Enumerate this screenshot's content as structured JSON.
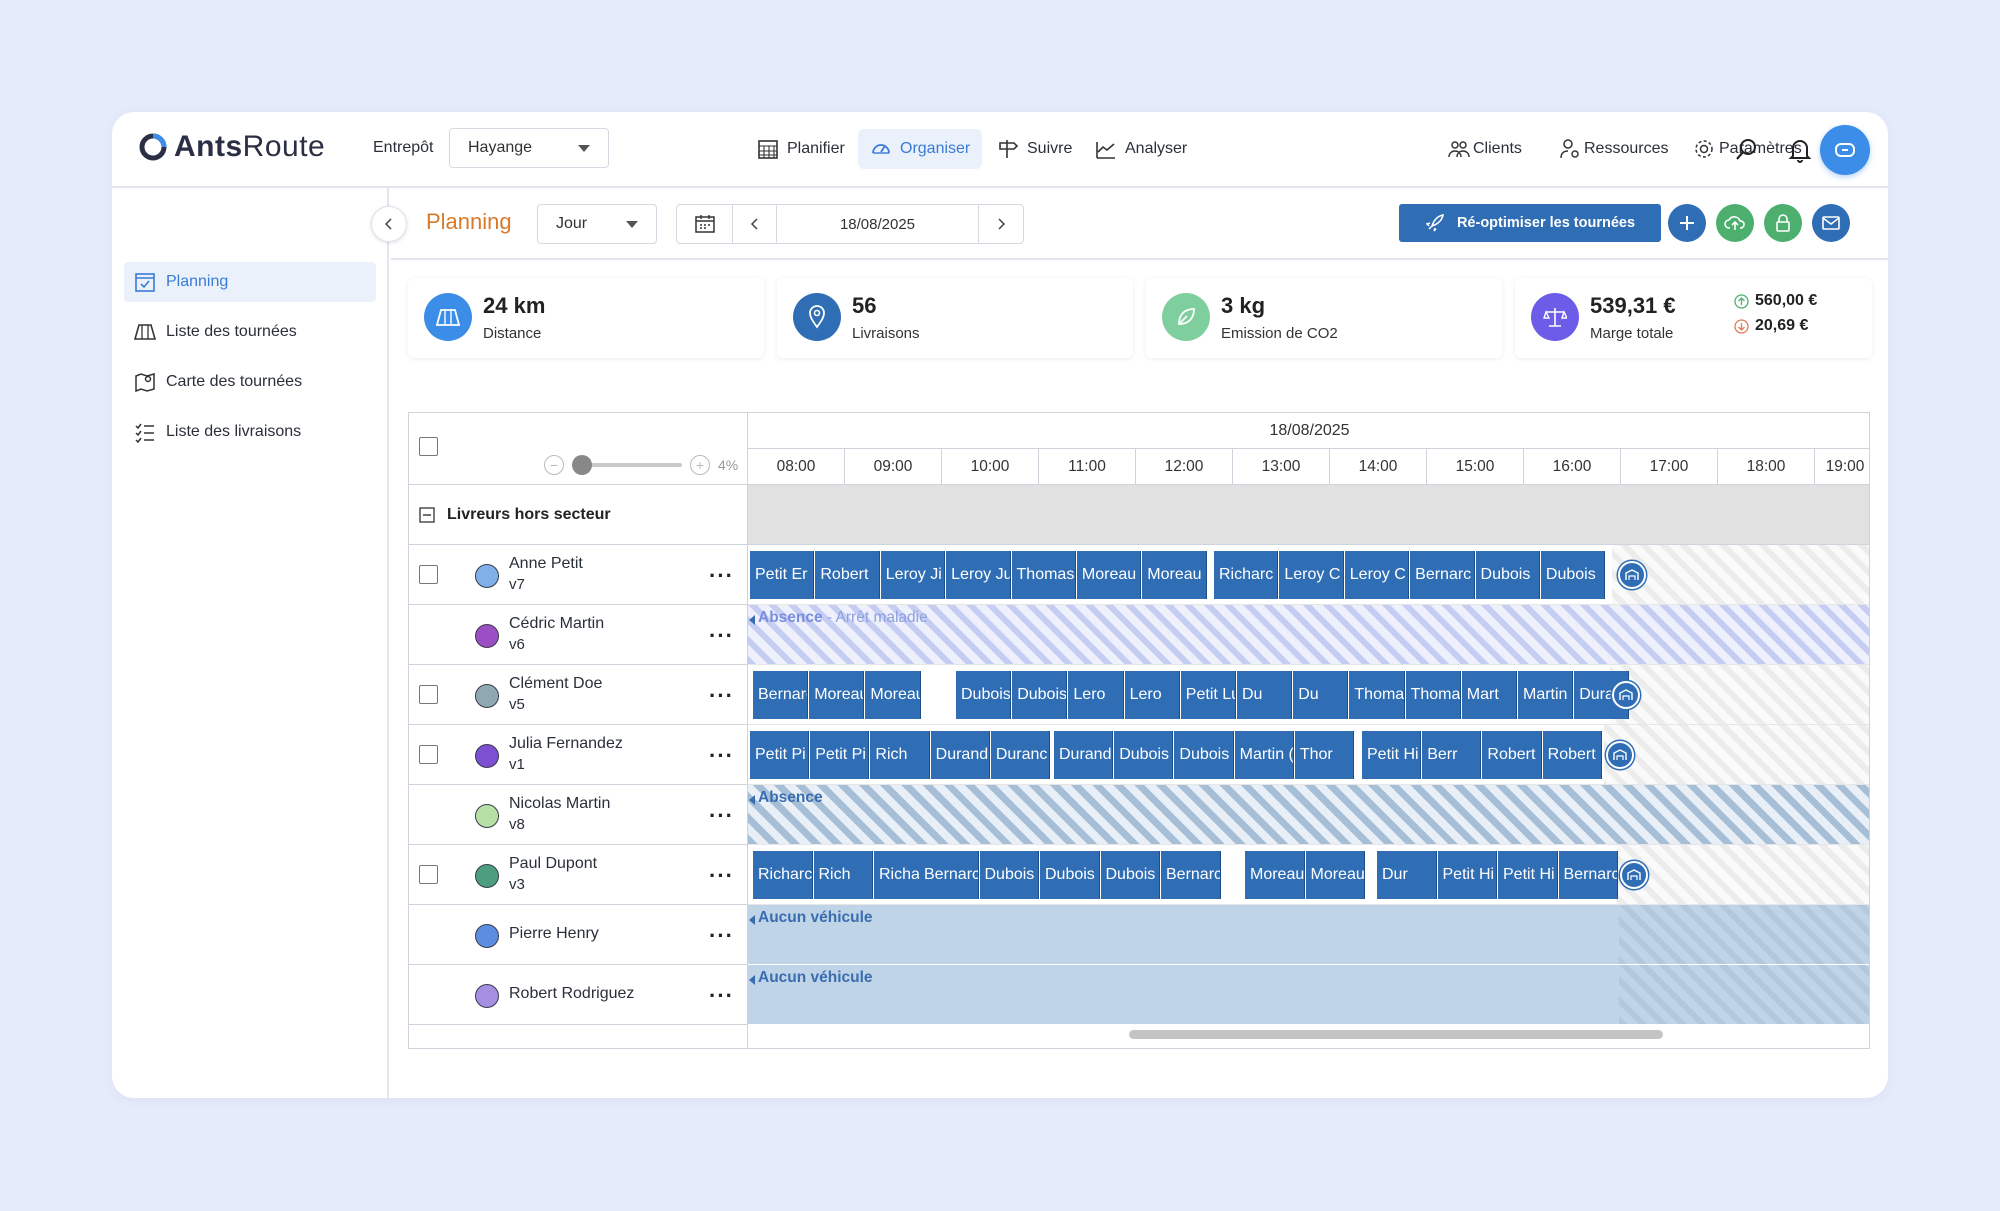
{
  "app": {
    "brand_a": "Ants",
    "brand_b": "Route"
  },
  "header": {
    "warehouse_label": "Entrepôt",
    "warehouse_value": "Hayange",
    "nav": [
      {
        "label": "Planifier",
        "icon": "calendar-grid-icon"
      },
      {
        "label": "Organiser",
        "icon": "speedometer-icon",
        "active": true
      },
      {
        "label": "Suivre",
        "icon": "signpost-icon"
      },
      {
        "label": "Analyser",
        "icon": "chart-line-icon"
      }
    ],
    "right_nav": [
      {
        "label": "Clients",
        "icon": "users-icon"
      },
      {
        "label": "Ressources",
        "icon": "user-gear-icon"
      },
      {
        "label": "Paramètres",
        "icon": "gear-icon"
      }
    ]
  },
  "sidebar": {
    "items": [
      {
        "label": "Planning",
        "icon": "calendar-check-icon",
        "active": true
      },
      {
        "label": "Liste des tournées",
        "icon": "map-fold-icon"
      },
      {
        "label": "Carte des tournées",
        "icon": "map-pin-icon"
      },
      {
        "label": "Liste des livraisons",
        "icon": "list-check-icon"
      }
    ]
  },
  "toolbar": {
    "title": "Planning",
    "view_value": "Jour",
    "date": "18/08/2025",
    "reoptimize_label": "Ré-optimiser les tournées"
  },
  "stats": [
    {
      "value": "24 km",
      "label": "Distance",
      "color": "#3b8de8"
    },
    {
      "value": "56",
      "label": "Livraisons",
      "color": "#2f6db5"
    },
    {
      "value": "3 kg",
      "label": "Emission de CO2",
      "color": "#7fcf9e"
    },
    {
      "value": "539,31 €",
      "label": "Marge totale",
      "color": "#6c5ce7",
      "up": "560,00 €",
      "down": "20,69 €"
    }
  ],
  "planning": {
    "zoom": "4%",
    "date": "18/08/2025",
    "hours": [
      "08:00",
      "09:00",
      "10:00",
      "11:00",
      "12:00",
      "13:00",
      "14:00",
      "15:00",
      "16:00",
      "17:00",
      "18:00",
      "19:00"
    ],
    "group": "Livreurs hors secteur",
    "drivers": [
      {
        "name": "Anne Petit",
        "vehicle": "v7",
        "color": "#7fb0e8",
        "checkbox": true,
        "stops": [
          "Petit Er",
          "Robert",
          "Leroy Ji",
          "Leroy Ju",
          "Thomas",
          "Moreau",
          "Moreau",
          "Richarc",
          "Leroy C",
          "Leroy C",
          "Bernarc",
          "Dubois",
          "Dubois"
        ]
      },
      {
        "name": "Cédric Martin",
        "vehicle": "v6",
        "color": "#9b4fc4",
        "checkbox": false,
        "absence": "Absence",
        "absence_reason": " - Arrêt maladie"
      },
      {
        "name": "Clément Doe",
        "vehicle": "v5",
        "color": "#8fa9b3",
        "checkbox": true,
        "stops": [
          "Bernarc",
          "Moreau",
          "Moreau",
          "Dubois",
          "Dubois",
          "Lero",
          "Lero",
          "Petit Lu",
          "Du",
          "Du",
          "Thomas",
          "Thomas",
          "Mart",
          "Martin J",
          "Duranc"
        ]
      },
      {
        "name": "Julia Fernandez",
        "vehicle": "v1",
        "color": "#7d4fd1",
        "checkbox": true,
        "stops": [
          "Petit Pi",
          "Petit Pi",
          "Rich",
          "Durand",
          "Duranc",
          "Durand",
          "Dubois",
          "Dubois",
          "Martin (",
          "Thor",
          "Petit Hi",
          "Berr",
          "Robert",
          "Robert"
        ]
      },
      {
        "name": "Nicolas Martin",
        "vehicle": "v8",
        "color": "#b6e0a6",
        "checkbox": false,
        "absence": "Absence"
      },
      {
        "name": "Paul Dupont",
        "vehicle": "v3",
        "color": "#4d9e7f",
        "checkbox": true,
        "stops": [
          "Richarc",
          "Rich",
          "Richarc",
          "Bernarc",
          "Dubois",
          "Dubois",
          "Dubois",
          "Bernarc",
          "Moreau",
          "Moreau",
          "Dur",
          "Petit Hi",
          "Petit Hi",
          "Bernarc"
        ]
      },
      {
        "name": "Pierre Henry",
        "vehicle": "",
        "color": "#5b8ee0",
        "checkbox": false,
        "no_vehicle": "Aucun véhicule"
      },
      {
        "name": "Robert Rodriguez",
        "vehicle": "",
        "color": "#a58fe3",
        "checkbox": false,
        "no_vehicle": "Aucun véhicule"
      }
    ]
  }
}
